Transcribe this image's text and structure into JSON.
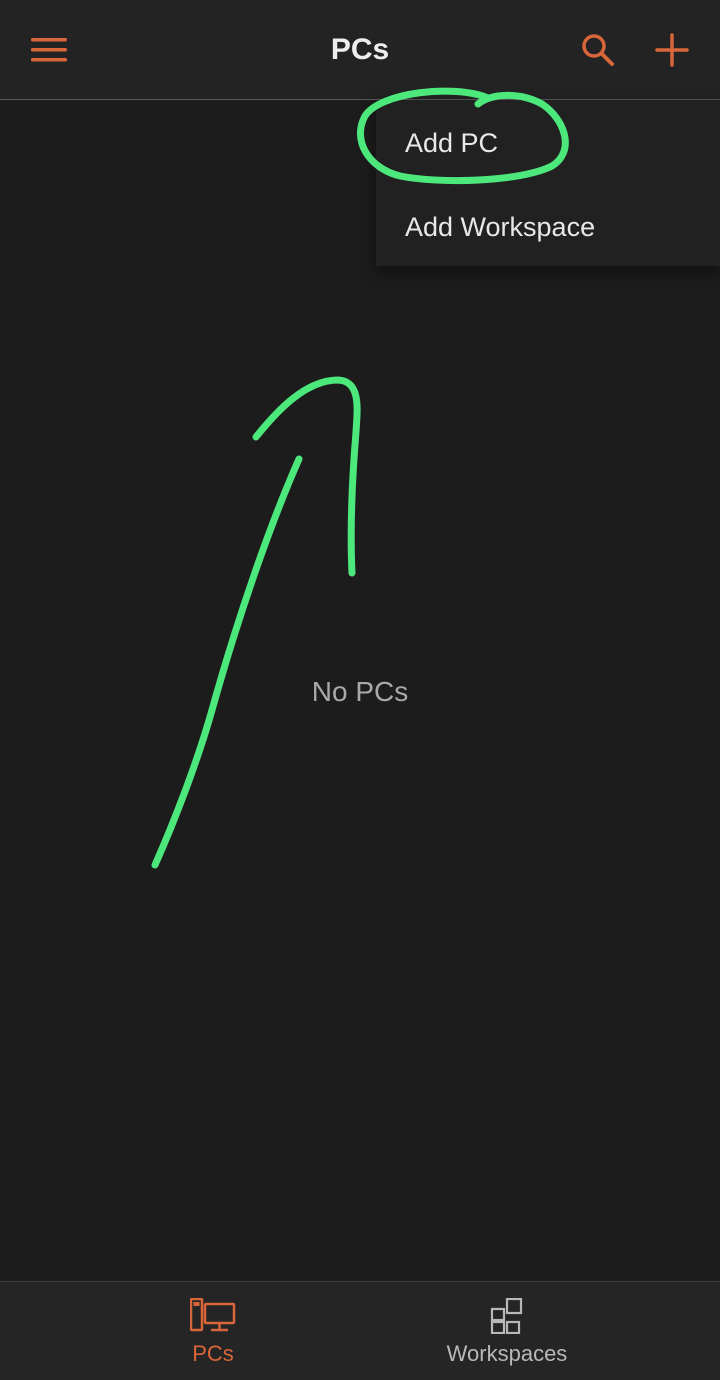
{
  "header": {
    "title": "PCs",
    "menu_icon": "hamburger-menu-icon",
    "search_icon": "search-icon",
    "add_icon": "plus-icon"
  },
  "dropdown": {
    "items": [
      {
        "label": "Add PC",
        "highlighted": true
      },
      {
        "label": "Add Workspace",
        "highlighted": false
      }
    ]
  },
  "main": {
    "empty_message": "No PCs"
  },
  "bottom_nav": {
    "tabs": [
      {
        "label": "PCs",
        "icon": "pc-monitor-icon",
        "active": true
      },
      {
        "label": "Workspaces",
        "icon": "workspaces-grid-icon",
        "active": false
      }
    ]
  },
  "colors": {
    "background": "#1c1c1c",
    "top_bar": "#232323",
    "accent": "#d9653a",
    "annotation": "#4de87c",
    "text_primary": "#eeeeee",
    "text_muted": "#a9a9a9"
  }
}
